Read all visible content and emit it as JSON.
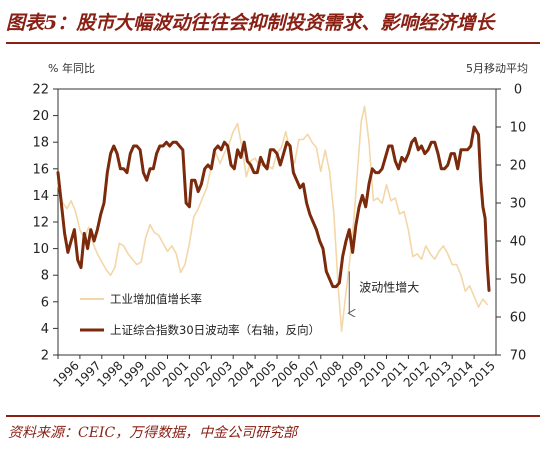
{
  "header": {
    "title": "图表5：股市大幅波动往往会抑制投资需求、影响经济增长"
  },
  "footer": {
    "source": "资料来源：CEIC，万得数据，中金公司研究部"
  },
  "colors": {
    "title": "#8a1f14",
    "volatility": "#7b2a0c",
    "industrial": "#f3d7a8",
    "axis": "#333333"
  },
  "chart_data": {
    "type": "line",
    "left_unit": "% 年同比",
    "right_unit": "5月移动平均",
    "x_ticks": [
      "1996",
      "1997",
      "1998",
      "1999",
      "2000",
      "2001",
      "2002",
      "2003",
      "2004",
      "2005",
      "2006",
      "2007",
      "2008",
      "2009",
      "2010",
      "2011",
      "2012",
      "2013",
      "2014",
      "2015"
    ],
    "xlim": [
      1996,
      2016
    ],
    "left_axis": {
      "ylim": [
        2,
        22
      ],
      "ticks": [
        2,
        4,
        6,
        8,
        10,
        12,
        14,
        16,
        18,
        20,
        22
      ]
    },
    "right_axis": {
      "ylim": [
        0,
        70
      ],
      "inverted": true,
      "ticks": [
        0,
        10,
        20,
        30,
        40,
        50,
        60,
        70
      ]
    },
    "annotation": {
      "text": "波动性增大",
      "x": 2009.3,
      "y_from": 48,
      "y_to": 59
    },
    "series": [
      {
        "name": "工业增加值增长率",
        "axis": "left",
        "points": [
          [
            1996.0,
            14.8
          ],
          [
            1996.2,
            13.5
          ],
          [
            1996.4,
            13.0
          ],
          [
            1996.6,
            13.6
          ],
          [
            1996.8,
            12.8
          ],
          [
            1997.0,
            11.4
          ],
          [
            1997.2,
            10.8
          ],
          [
            1997.4,
            11.6
          ],
          [
            1997.6,
            10.4
          ],
          [
            1997.8,
            9.6
          ],
          [
            1998.0,
            9.0
          ],
          [
            1998.2,
            8.4
          ],
          [
            1998.4,
            8.0
          ],
          [
            1998.6,
            8.6
          ],
          [
            1998.8,
            10.4
          ],
          [
            1999.0,
            10.2
          ],
          [
            1999.2,
            9.6
          ],
          [
            1999.4,
            9.2
          ],
          [
            1999.6,
            8.8
          ],
          [
            1999.8,
            9.0
          ],
          [
            2000.0,
            10.8
          ],
          [
            2000.2,
            11.8
          ],
          [
            2000.4,
            11.2
          ],
          [
            2000.6,
            11.0
          ],
          [
            2000.8,
            10.4
          ],
          [
            2001.0,
            9.8
          ],
          [
            2001.2,
            10.2
          ],
          [
            2001.4,
            9.6
          ],
          [
            2001.6,
            8.2
          ],
          [
            2001.8,
            8.8
          ],
          [
            2002.0,
            10.4
          ],
          [
            2002.2,
            12.4
          ],
          [
            2002.4,
            13.0
          ],
          [
            2002.6,
            13.8
          ],
          [
            2002.8,
            14.6
          ],
          [
            2003.0,
            16.2
          ],
          [
            2003.2,
            17.2
          ],
          [
            2003.4,
            16.4
          ],
          [
            2003.6,
            17.2
          ],
          [
            2003.8,
            17.8
          ],
          [
            2004.0,
            18.8
          ],
          [
            2004.2,
            19.4
          ],
          [
            2004.4,
            17.6
          ],
          [
            2004.6,
            15.4
          ],
          [
            2004.8,
            16.6
          ],
          [
            2005.0,
            16.8
          ],
          [
            2005.2,
            16.2
          ],
          [
            2005.4,
            16.4
          ],
          [
            2005.6,
            16.2
          ],
          [
            2005.8,
            16.0
          ],
          [
            2006.0,
            17.2
          ],
          [
            2006.2,
            17.6
          ],
          [
            2006.4,
            18.8
          ],
          [
            2006.6,
            17.2
          ],
          [
            2006.8,
            16.4
          ],
          [
            2007.0,
            18.2
          ],
          [
            2007.2,
            18.2
          ],
          [
            2007.4,
            18.6
          ],
          [
            2007.6,
            18.0
          ],
          [
            2007.8,
            17.6
          ],
          [
            2008.0,
            15.8
          ],
          [
            2008.2,
            17.4
          ],
          [
            2008.4,
            15.8
          ],
          [
            2008.6,
            12.6
          ],
          [
            2008.8,
            7.0
          ],
          [
            2008.95,
            3.8
          ],
          [
            2009.1,
            6.0
          ],
          [
            2009.3,
            8.8
          ],
          [
            2009.5,
            12.0
          ],
          [
            2009.7,
            16.4
          ],
          [
            2009.85,
            19.6
          ],
          [
            2010.0,
            20.7
          ],
          [
            2010.2,
            18.0
          ],
          [
            2010.4,
            13.6
          ],
          [
            2010.6,
            13.8
          ],
          [
            2010.8,
            13.4
          ],
          [
            2011.0,
            14.8
          ],
          [
            2011.2,
            13.6
          ],
          [
            2011.4,
            13.8
          ],
          [
            2011.6,
            12.6
          ],
          [
            2011.8,
            12.8
          ],
          [
            2012.0,
            11.4
          ],
          [
            2012.2,
            9.4
          ],
          [
            2012.4,
            9.6
          ],
          [
            2012.6,
            9.2
          ],
          [
            2012.8,
            10.2
          ],
          [
            2013.0,
            9.6
          ],
          [
            2013.2,
            9.2
          ],
          [
            2013.4,
            9.8
          ],
          [
            2013.6,
            10.2
          ],
          [
            2013.8,
            9.6
          ],
          [
            2014.0,
            8.8
          ],
          [
            2014.2,
            8.8
          ],
          [
            2014.4,
            8.0
          ],
          [
            2014.6,
            6.8
          ],
          [
            2014.8,
            7.2
          ],
          [
            2015.0,
            6.4
          ],
          [
            2015.2,
            5.6
          ],
          [
            2015.4,
            6.2
          ],
          [
            2015.6,
            5.8
          ]
        ]
      },
      {
        "name": "上证综合指数30日波动率（右轴，反向）",
        "axis": "right",
        "points": [
          [
            1996.0,
            22
          ],
          [
            1996.15,
            30
          ],
          [
            1996.3,
            38
          ],
          [
            1996.45,
            43
          ],
          [
            1996.6,
            40
          ],
          [
            1996.75,
            37
          ],
          [
            1996.9,
            45
          ],
          [
            1997.05,
            47
          ],
          [
            1997.2,
            38
          ],
          [
            1997.35,
            42
          ],
          [
            1997.5,
            37
          ],
          [
            1997.65,
            40
          ],
          [
            1997.8,
            37
          ],
          [
            1997.95,
            33
          ],
          [
            1998.1,
            30
          ],
          [
            1998.25,
            22
          ],
          [
            1998.4,
            17
          ],
          [
            1998.55,
            15
          ],
          [
            1998.7,
            17
          ],
          [
            1998.85,
            21
          ],
          [
            1999.0,
            21
          ],
          [
            1999.15,
            22
          ],
          [
            1999.3,
            17
          ],
          [
            1999.45,
            15
          ],
          [
            1999.6,
            15
          ],
          [
            1999.75,
            16
          ],
          [
            1999.9,
            22
          ],
          [
            2000.05,
            24
          ],
          [
            2000.2,
            21
          ],
          [
            2000.35,
            21
          ],
          [
            2000.5,
            17
          ],
          [
            2000.65,
            15
          ],
          [
            2000.8,
            15
          ],
          [
            2000.95,
            14
          ],
          [
            2001.1,
            15
          ],
          [
            2001.25,
            14
          ],
          [
            2001.4,
            14
          ],
          [
            2001.55,
            15
          ],
          [
            2001.7,
            16
          ],
          [
            2001.85,
            30
          ],
          [
            2002.0,
            31
          ],
          [
            2002.1,
            24
          ],
          [
            2002.25,
            24
          ],
          [
            2002.4,
            27
          ],
          [
            2002.55,
            25
          ],
          [
            2002.7,
            21
          ],
          [
            2002.85,
            20
          ],
          [
            2003.0,
            21
          ],
          [
            2003.15,
            16
          ],
          [
            2003.3,
            15
          ],
          [
            2003.45,
            16
          ],
          [
            2003.6,
            14
          ],
          [
            2003.75,
            15
          ],
          [
            2003.9,
            20
          ],
          [
            2004.05,
            21
          ],
          [
            2004.2,
            16
          ],
          [
            2004.35,
            18
          ],
          [
            2004.5,
            14
          ],
          [
            2004.65,
            19
          ],
          [
            2004.8,
            20
          ],
          [
            2004.95,
            22
          ],
          [
            2005.1,
            22
          ],
          [
            2005.25,
            18
          ],
          [
            2005.4,
            20
          ],
          [
            2005.55,
            21
          ],
          [
            2005.7,
            16
          ],
          [
            2005.85,
            16
          ],
          [
            2006.0,
            17
          ],
          [
            2006.15,
            20
          ],
          [
            2006.3,
            17
          ],
          [
            2006.45,
            14
          ],
          [
            2006.6,
            15
          ],
          [
            2006.75,
            22
          ],
          [
            2006.9,
            24
          ],
          [
            2007.05,
            26
          ],
          [
            2007.2,
            25
          ],
          [
            2007.35,
            30
          ],
          [
            2007.5,
            33
          ],
          [
            2007.65,
            35
          ],
          [
            2007.8,
            37
          ],
          [
            2007.95,
            40
          ],
          [
            2008.1,
            42
          ],
          [
            2008.25,
            48
          ],
          [
            2008.4,
            50
          ],
          [
            2008.55,
            52
          ],
          [
            2008.7,
            52
          ],
          [
            2008.85,
            51
          ],
          [
            2009.0,
            44
          ],
          [
            2009.15,
            40
          ],
          [
            2009.3,
            37
          ],
          [
            2009.45,
            43
          ],
          [
            2009.6,
            36
          ],
          [
            2009.75,
            31
          ],
          [
            2009.9,
            28
          ],
          [
            2010.05,
            31
          ],
          [
            2010.2,
            25
          ],
          [
            2010.35,
            21
          ],
          [
            2010.5,
            22
          ],
          [
            2010.65,
            22
          ],
          [
            2010.8,
            21
          ],
          [
            2010.95,
            18
          ],
          [
            2011.1,
            15
          ],
          [
            2011.25,
            15
          ],
          [
            2011.4,
            19
          ],
          [
            2011.55,
            21
          ],
          [
            2011.7,
            18
          ],
          [
            2011.85,
            19
          ],
          [
            2012.0,
            17
          ],
          [
            2012.15,
            14
          ],
          [
            2012.3,
            13
          ],
          [
            2012.45,
            16
          ],
          [
            2012.6,
            15
          ],
          [
            2012.75,
            17
          ],
          [
            2012.9,
            16
          ],
          [
            2013.05,
            14
          ],
          [
            2013.2,
            14
          ],
          [
            2013.35,
            17
          ],
          [
            2013.5,
            21
          ],
          [
            2013.65,
            21
          ],
          [
            2013.8,
            20
          ],
          [
            2013.95,
            17
          ],
          [
            2014.1,
            17
          ],
          [
            2014.25,
            21
          ],
          [
            2014.4,
            16
          ],
          [
            2014.55,
            16
          ],
          [
            2014.7,
            16
          ],
          [
            2014.85,
            15
          ],
          [
            2015.0,
            10
          ],
          [
            2015.1,
            11
          ],
          [
            2015.2,
            12
          ],
          [
            2015.3,
            24
          ],
          [
            2015.4,
            31
          ],
          [
            2015.5,
            34
          ],
          [
            2015.6,
            46
          ],
          [
            2015.68,
            53
          ]
        ]
      }
    ],
    "legend": [
      {
        "label": "工业增加值增长率",
        "series": 0
      },
      {
        "label": "上证综合指数30日波动率（右轴，反向）",
        "series": 1
      }
    ]
  }
}
